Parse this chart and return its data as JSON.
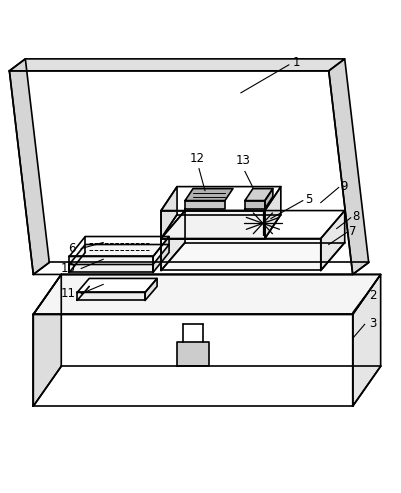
{
  "background_color": "#ffffff",
  "line_color": "#000000",
  "line_width": 1.2,
  "fig_width": 4.02,
  "fig_height": 4.93,
  "dpi": 100
}
